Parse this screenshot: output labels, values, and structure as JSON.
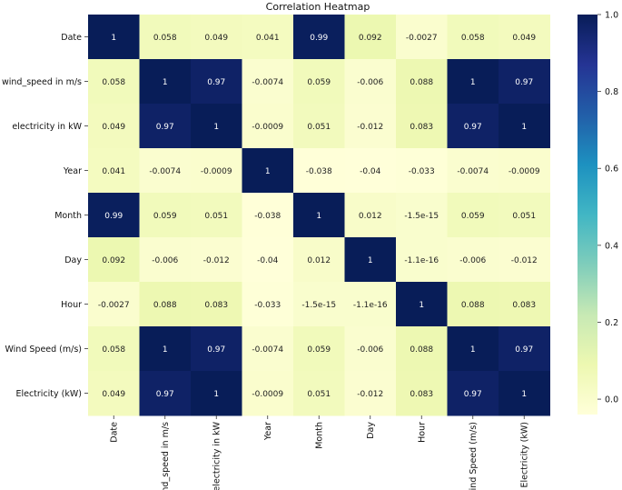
{
  "chart_data": {
    "type": "heatmap",
    "title": "Correlation Heatmap",
    "row_labels": [
      "Date",
      "wind_speed in m/s",
      "electricity in kW",
      "Year",
      "Month",
      "Day",
      "Hour",
      "Wind Speed (m/s)",
      "Electricity (kW)"
    ],
    "col_labels": [
      "Date",
      "wind_speed in m/s",
      "electricity in kW",
      "Year",
      "Month",
      "Day",
      "Hour",
      "Wind Speed (m/s)",
      "Electricity (kW)"
    ],
    "values": [
      [
        1,
        0.058,
        0.049,
        0.041,
        0.99,
        0.092,
        -0.0027,
        0.058,
        0.049
      ],
      [
        0.058,
        1,
        0.97,
        -0.0074,
        0.059,
        -0.006,
        0.088,
        1,
        0.97
      ],
      [
        0.049,
        0.97,
        1,
        -0.0009,
        0.051,
        -0.012,
        0.083,
        0.97,
        1
      ],
      [
        0.041,
        -0.0074,
        -0.0009,
        1,
        -0.038,
        -0.04,
        -0.033,
        -0.0074,
        -0.0009
      ],
      [
        0.99,
        0.059,
        0.051,
        -0.038,
        1,
        0.012,
        -1.5e-15,
        0.059,
        0.051
      ],
      [
        0.092,
        -0.006,
        -0.012,
        -0.04,
        0.012,
        1,
        -1.1e-16,
        -0.006,
        -0.012
      ],
      [
        -0.0027,
        0.088,
        0.083,
        -0.033,
        -1.5e-15,
        -1.1e-16,
        1,
        0.088,
        0.083
      ],
      [
        0.058,
        1,
        0.97,
        -0.0074,
        0.059,
        -0.006,
        0.088,
        1,
        0.97
      ],
      [
        0.049,
        0.97,
        1,
        -0.0009,
        0.051,
        -0.012,
        0.083,
        0.97,
        1
      ]
    ],
    "annotations": [
      [
        "1",
        "0.058",
        "0.049",
        "0.041",
        "0.99",
        "0.092",
        "-0.0027",
        "0.058",
        "0.049"
      ],
      [
        "0.058",
        "1",
        "0.97",
        "-0.0074",
        "0.059",
        "-0.006",
        "0.088",
        "1",
        "0.97"
      ],
      [
        "0.049",
        "0.97",
        "1",
        "-0.0009",
        "0.051",
        "-0.012",
        "0.083",
        "0.97",
        "1"
      ],
      [
        "0.041",
        "-0.0074",
        "-0.0009",
        "1",
        "-0.038",
        "-0.04",
        "-0.033",
        "-0.0074",
        "-0.0009"
      ],
      [
        "0.99",
        "0.059",
        "0.051",
        "-0.038",
        "1",
        "0.012",
        "-1.5e-15",
        "0.059",
        "0.051"
      ],
      [
        "0.092",
        "-0.006",
        "-0.012",
        "-0.04",
        "0.012",
        "1",
        "-1.1e-16",
        "-0.006",
        "-0.012"
      ],
      [
        "-0.0027",
        "0.088",
        "0.083",
        "-0.033",
        "-1.5e-15",
        "-1.1e-16",
        "1",
        "0.088",
        "0.083"
      ],
      [
        "0.058",
        "1",
        "0.97",
        "-0.0074",
        "0.059",
        "-0.006",
        "0.088",
        "1",
        "0.97"
      ],
      [
        "0.049",
        "0.97",
        "1",
        "-0.0009",
        "0.051",
        "-0.012",
        "0.083",
        "0.97",
        "1"
      ]
    ],
    "colormap": "YlGnBu",
    "colorbar": {
      "vmin": -0.04,
      "vmax": 1.0,
      "ticks": [
        0.0,
        0.2,
        0.4,
        0.6,
        0.8,
        1.0
      ],
      "tick_labels": [
        "0.0",
        "0.2",
        "0.4",
        "0.6",
        "0.8",
        "1.0"
      ]
    }
  }
}
